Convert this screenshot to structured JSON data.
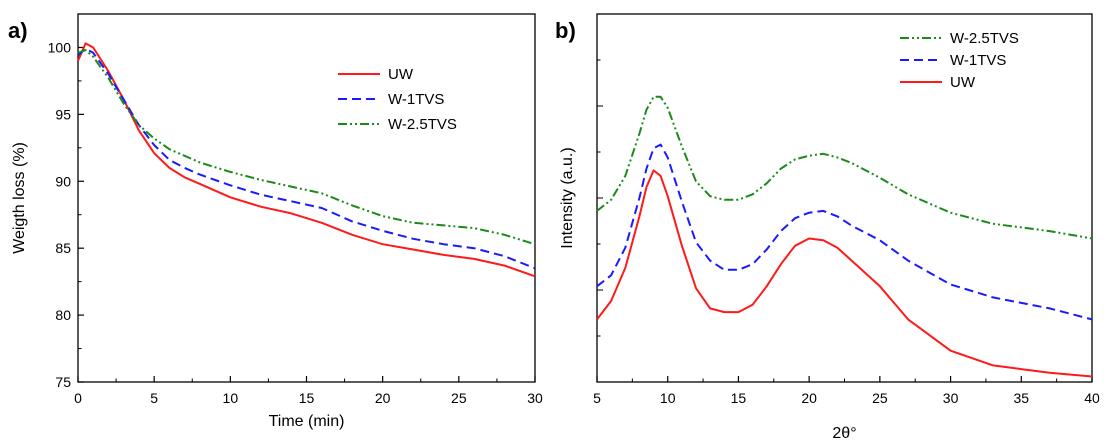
{
  "chart_data": [
    {
      "panel": "a)",
      "type": "line",
      "title": "",
      "xlabel": "Time (min)",
      "ylabel": "Weigth loss (%)",
      "xlim": [
        0,
        30
      ],
      "ylim": [
        75,
        102.5
      ],
      "xticks": [
        "0",
        "5",
        "10",
        "15",
        "20",
        "25",
        "30"
      ],
      "yticks": [
        "75",
        "80",
        "85",
        "90",
        "95",
        "100"
      ],
      "legend_position": "top-right",
      "series": [
        {
          "name": "UW",
          "color": "#ff1a1a",
          "dash": "solid",
          "x": [
            0,
            0.5,
            1,
            2,
            3,
            4,
            5,
            6,
            7,
            8,
            10,
            12,
            14,
            16,
            18,
            20,
            22,
            24,
            26,
            28,
            30
          ],
          "y": [
            99.0,
            100.3,
            100.0,
            98.2,
            96.1,
            93.8,
            92.1,
            91.0,
            90.3,
            89.8,
            88.8,
            88.1,
            87.6,
            86.9,
            86.0,
            85.3,
            84.9,
            84.5,
            84.2,
            83.7,
            82.9
          ]
        },
        {
          "name": "W-1TVS",
          "color": "#1a1aff",
          "dash": "dashed",
          "x": [
            0,
            0.5,
            1,
            2,
            3,
            4,
            5,
            6,
            7,
            8,
            10,
            12,
            14,
            16,
            18,
            20,
            22,
            24,
            26,
            28,
            30
          ],
          "y": [
            99.4,
            99.9,
            99.6,
            98.0,
            96.1,
            94.2,
            92.7,
            91.6,
            91.0,
            90.5,
            89.7,
            89.0,
            88.5,
            88.0,
            87.0,
            86.3,
            85.7,
            85.3,
            85.0,
            84.4,
            83.5
          ]
        },
        {
          "name": "W-2.5TVS",
          "color": "#1a8a1a",
          "dash": "dashdotdot",
          "x": [
            0,
            0.5,
            1,
            2,
            3,
            4,
            5,
            6,
            7,
            8,
            10,
            12,
            14,
            16,
            18,
            20,
            22,
            24,
            26,
            28,
            30
          ],
          "y": [
            99.6,
            99.8,
            99.3,
            97.7,
            95.8,
            94.2,
            93.2,
            92.4,
            91.9,
            91.4,
            90.7,
            90.1,
            89.6,
            89.1,
            88.2,
            87.4,
            86.9,
            86.7,
            86.5,
            86.0,
            85.3
          ]
        }
      ]
    },
    {
      "panel": "b)",
      "type": "line",
      "title": "",
      "xlabel": "2θ°",
      "ylabel": "Intensity (a.u.)",
      "xlim": [
        5,
        40
      ],
      "ylim": [
        0,
        1
      ],
      "xticks": [
        "5",
        "10",
        "15",
        "20",
        "25",
        "30",
        "35",
        "40"
      ],
      "yticks": [],
      "legend_position": "top-right",
      "series": [
        {
          "name": "W-2.5TVS",
          "color": "#1a8a1a",
          "dash": "dashdotdot",
          "x": [
            5,
            6,
            7,
            8,
            8.5,
            9,
            9.5,
            10,
            11,
            12,
            13,
            14,
            15,
            16,
            17,
            18,
            19,
            20,
            21,
            22,
            23,
            25,
            27,
            30,
            33,
            35,
            37,
            40
          ],
          "y": [
            0.465,
            0.495,
            0.56,
            0.675,
            0.74,
            0.775,
            0.775,
            0.745,
            0.64,
            0.545,
            0.505,
            0.495,
            0.495,
            0.51,
            0.54,
            0.58,
            0.605,
            0.615,
            0.62,
            0.61,
            0.595,
            0.555,
            0.51,
            0.46,
            0.43,
            0.42,
            0.41,
            0.39
          ]
        },
        {
          "name": "W-1TVS",
          "color": "#1a1aff",
          "dash": "dashed",
          "x": [
            5,
            6,
            7,
            8,
            8.5,
            9,
            9.5,
            10,
            11,
            12,
            13,
            14,
            15,
            16,
            17,
            18,
            19,
            20,
            21,
            22,
            23,
            25,
            27,
            30,
            33,
            35,
            37,
            40
          ],
          "y": [
            0.26,
            0.29,
            0.365,
            0.5,
            0.58,
            0.635,
            0.645,
            0.61,
            0.49,
            0.38,
            0.33,
            0.305,
            0.305,
            0.32,
            0.36,
            0.41,
            0.445,
            0.46,
            0.465,
            0.45,
            0.425,
            0.385,
            0.33,
            0.265,
            0.23,
            0.215,
            0.2,
            0.17
          ]
        },
        {
          "name": "UW",
          "color": "#ff1a1a",
          "dash": "solid",
          "x": [
            5,
            6,
            7,
            8,
            8.5,
            9,
            9.5,
            10,
            11,
            12,
            13,
            14,
            15,
            16,
            17,
            18,
            19,
            20,
            21,
            22,
            23,
            25,
            27,
            30,
            33,
            35,
            37,
            40
          ],
          "y": [
            0.17,
            0.22,
            0.31,
            0.45,
            0.53,
            0.575,
            0.56,
            0.505,
            0.37,
            0.255,
            0.2,
            0.19,
            0.19,
            0.21,
            0.26,
            0.32,
            0.37,
            0.39,
            0.385,
            0.365,
            0.33,
            0.26,
            0.17,
            0.085,
            0.045,
            0.035,
            0.025,
            0.015
          ]
        }
      ]
    }
  ]
}
